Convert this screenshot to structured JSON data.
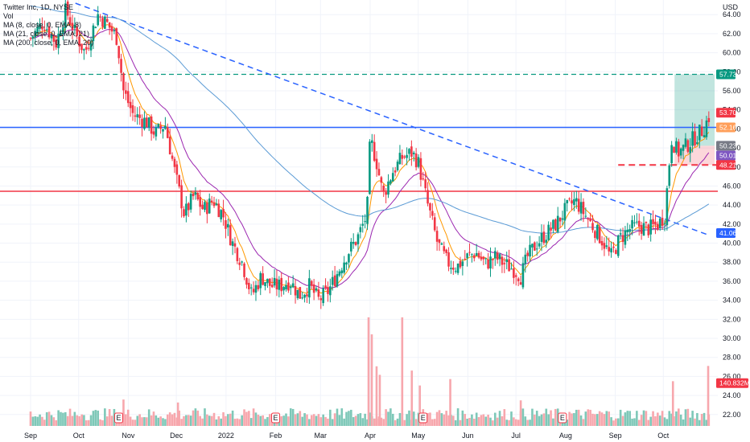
{
  "legend": {
    "title": "Twitter Inc, 1D, NYSE",
    "vol": "Vol",
    "ma1": "MA (8, close, 0, EMA, 8)",
    "ma2": "MA (21, close, 0, EMA, 21)",
    "ma3": "MA (200, close, 0, EMA, 20)"
  },
  "chart_data": {
    "type": "candlestick",
    "currency": "USD",
    "ylim": [
      20.8,
      65.2
    ],
    "y_ticks": [
      64.0,
      62.0,
      60.0,
      58.0,
      56.0,
      54.0,
      52.0,
      50.0,
      48.0,
      46.0,
      44.0,
      42.0,
      40.0,
      38.0,
      36.0,
      34.0,
      32.0,
      30.0,
      28.0,
      26.0,
      24.0,
      22.0
    ],
    "x_labels": [
      {
        "label": "Sep",
        "day": 0
      },
      {
        "label": "Oct",
        "day": 30
      },
      {
        "label": "Nov",
        "day": 61
      },
      {
        "label": "Dec",
        "day": 91
      },
      {
        "label": "2022",
        "day": 122
      },
      {
        "label": "Feb",
        "day": 153
      },
      {
        "label": "Mar",
        "day": 181
      },
      {
        "label": "Apr",
        "day": 212
      },
      {
        "label": "May",
        "day": 242
      },
      {
        "label": "Jun",
        "day": 273
      },
      {
        "label": "Jul",
        "day": 303
      },
      {
        "label": "Aug",
        "day": 334
      },
      {
        "label": "Sep",
        "day": 365
      },
      {
        "label": "Oct",
        "day": 395
      }
    ],
    "price_path": [
      [
        0,
        61.5
      ],
      [
        8,
        63.2
      ],
      [
        16,
        61.0
      ],
      [
        22,
        64.5
      ],
      [
        28,
        62.0
      ],
      [
        34,
        60.0
      ],
      [
        42,
        64.0
      ],
      [
        48,
        63.0
      ],
      [
        54,
        61.5
      ],
      [
        58,
        56.0
      ],
      [
        64,
        53.5
      ],
      [
        72,
        52.8
      ],
      [
        78,
        51.5
      ],
      [
        84,
        52.5
      ],
      [
        90,
        47.5
      ],
      [
        96,
        43.0
      ],
      [
        102,
        45.0
      ],
      [
        108,
        43.5
      ],
      [
        114,
        44.5
      ],
      [
        120,
        43.0
      ],
      [
        126,
        40.0
      ],
      [
        132,
        38.0
      ],
      [
        138,
        34.5
      ],
      [
        144,
        36.5
      ],
      [
        150,
        35.5
      ],
      [
        156,
        35.5
      ],
      [
        162,
        36.0
      ],
      [
        168,
        34.5
      ],
      [
        174,
        35.5
      ],
      [
        180,
        34.0
      ],
      [
        186,
        35.0
      ],
      [
        192,
        37.0
      ],
      [
        198,
        39.0
      ],
      [
        204,
        40.5
      ],
      [
        210,
        43.0
      ],
      [
        212,
        51.0
      ],
      [
        216,
        48.5
      ],
      [
        220,
        45.0
      ],
      [
        226,
        47.5
      ],
      [
        232,
        49.0
      ],
      [
        238,
        49.5
      ],
      [
        242,
        48.5
      ],
      [
        248,
        44.0
      ],
      [
        254,
        40.0
      ],
      [
        260,
        38.0
      ],
      [
        266,
        37.5
      ],
      [
        272,
        38.5
      ],
      [
        278,
        39.0
      ],
      [
        284,
        37.8
      ],
      [
        290,
        38.5
      ],
      [
        296,
        37.8
      ],
      [
        302,
        37.2
      ],
      [
        306,
        36.5
      ],
      [
        310,
        38.5
      ],
      [
        316,
        40.0
      ],
      [
        322,
        41.0
      ],
      [
        328,
        42.0
      ],
      [
        334,
        43.5
      ],
      [
        340,
        44.5
      ],
      [
        346,
        43.0
      ],
      [
        352,
        41.5
      ],
      [
        358,
        40.0
      ],
      [
        362,
        38.5
      ],
      [
        368,
        40.5
      ],
      [
        374,
        41.5
      ],
      [
        380,
        41.8
      ],
      [
        386,
        41.5
      ],
      [
        392,
        42.0
      ],
      [
        396,
        43.0
      ],
      [
        400,
        51.0
      ],
      [
        404,
        49.5
      ],
      [
        408,
        50.0
      ],
      [
        414,
        51.0
      ],
      [
        420,
        52.0
      ],
      [
        424,
        53.5
      ]
    ],
    "volume_spikes": [
      {
        "day": 32,
        "value": 27
      },
      {
        "day": 58,
        "value": 62
      },
      {
        "day": 92,
        "value": 55
      },
      {
        "day": 211,
        "value": 255
      },
      {
        "day": 213,
        "value": 215
      },
      {
        "day": 216,
        "value": 140
      },
      {
        "day": 218,
        "value": 120
      },
      {
        "day": 232,
        "value": 255
      },
      {
        "day": 238,
        "value": 130
      },
      {
        "day": 243,
        "value": 95
      },
      {
        "day": 262,
        "value": 110
      },
      {
        "day": 306,
        "value": 60
      },
      {
        "day": 401,
        "value": 105
      },
      {
        "day": 423,
        "value": 140.832
      }
    ],
    "earnings_markers": [
      {
        "label": "E",
        "day": 55
      },
      {
        "label": "E",
        "day": 153
      },
      {
        "label": "E",
        "day": 245
      },
      {
        "label": "E",
        "day": 332
      }
    ],
    "horizontal_lines": [
      {
        "price": 57.73,
        "color": "#089981",
        "style": "dashed"
      },
      {
        "price": 52.16,
        "color": "#2962ff",
        "style": "solid"
      },
      {
        "price": 45.45,
        "color": "#f23645",
        "style": "solid"
      },
      {
        "price": 48.21,
        "color": "#f23645",
        "style": "dashed-short"
      }
    ],
    "trendline": {
      "color": "#2962ff",
      "style": "dashed",
      "points": [
        [
          28,
          65.2
        ],
        [
          424,
          40.8
        ]
      ]
    },
    "position": {
      "entry": 50.23,
      "target": 57.73,
      "stop": 48.21,
      "day_start": 402,
      "day_end": 424
    },
    "price_tags": [
      {
        "value": "57.73",
        "price": 57.73,
        "bg": "#089981",
        "fg": "#ffffff"
      },
      {
        "value": "53.70",
        "price": 53.7,
        "bg": "#f23645",
        "fg": "#ffffff"
      },
      {
        "value": "52.16",
        "price": 52.16,
        "bg": "#ff9f5a",
        "fg": "#ffffff"
      },
      {
        "value": "50.23",
        "price": 50.23,
        "bg": "#787b86",
        "fg": "#ffffff"
      },
      {
        "value": "50.01",
        "price": 49.2,
        "bg": "#7e57c2",
        "fg": "#ffffff"
      },
      {
        "value": "48.21",
        "price": 48.21,
        "bg": "#f23645",
        "fg": "#ffffff"
      },
      {
        "value": "41.06",
        "price": 41.06,
        "bg": "#2962ff",
        "fg": "#ffffff"
      },
      {
        "value": "140.832M",
        "price": 25.3,
        "bg": "#f23645",
        "fg": "#ffffff"
      }
    ],
    "colors": {
      "up": "#089981",
      "down": "#f23645",
      "ema8": "#ff9800",
      "ema21": "#9c27b0",
      "ema200": "#5b9bd5",
      "vol_up": "#7ec8b8",
      "vol_down": "#f7a7ad"
    }
  }
}
